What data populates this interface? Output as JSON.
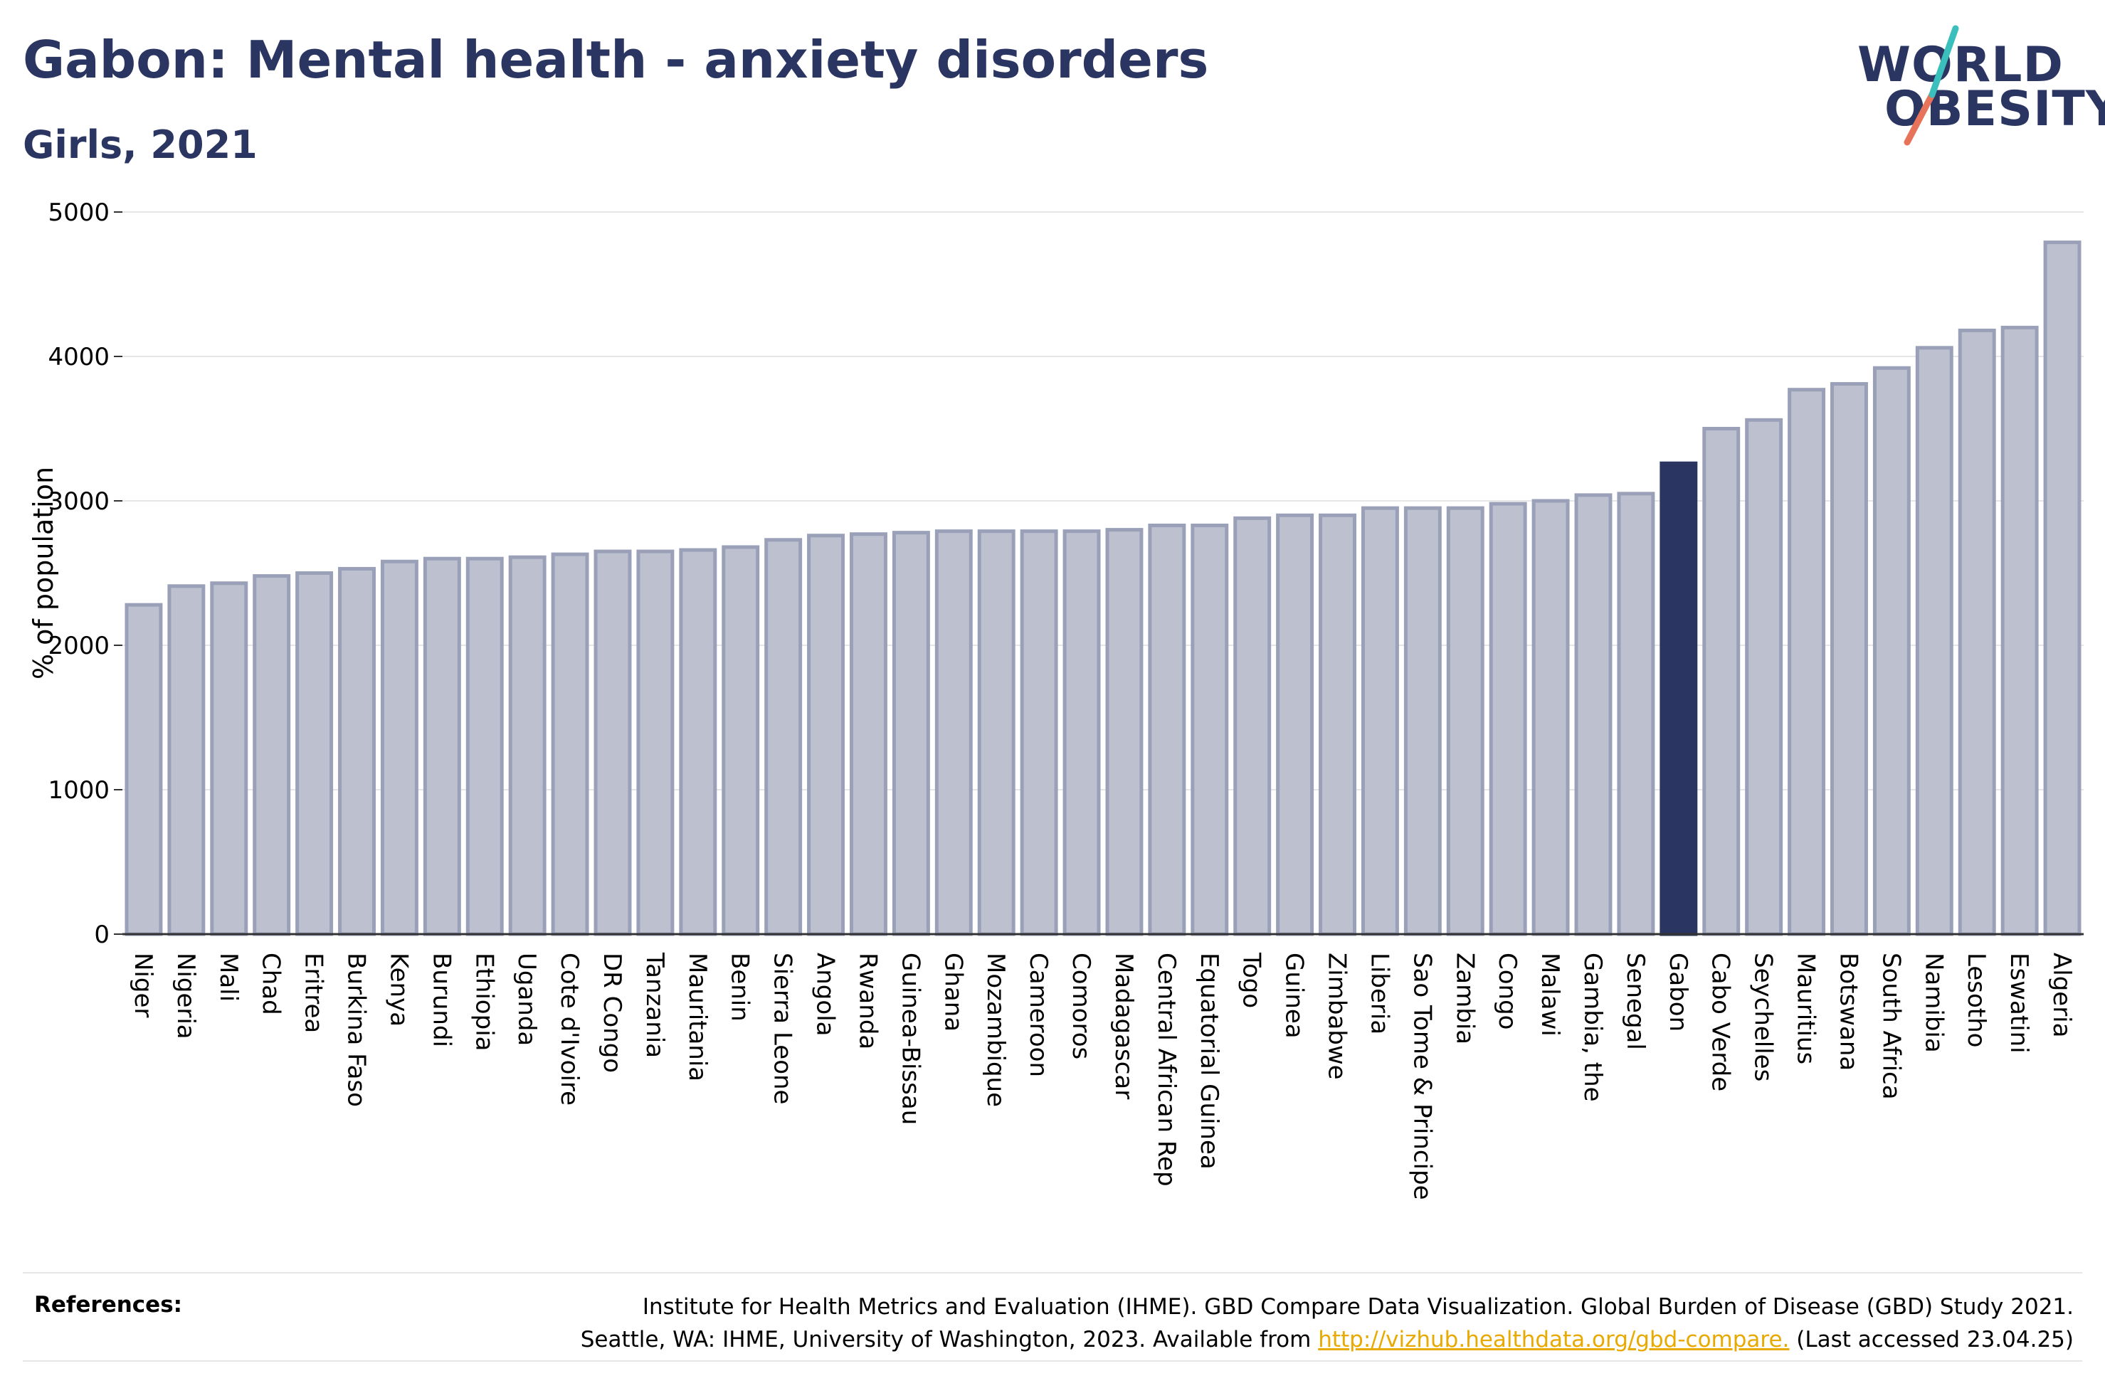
{
  "title": "Gabon: Mental health - anxiety disorders",
  "subtitle": "Girls, 2021",
  "logo": {
    "line1": "WORLD",
    "line2": "OBESITY"
  },
  "colors": {
    "highlight": "#2a3561",
    "bar_fill": "#bcc0cf",
    "bar_stroke": "#9aa0b8",
    "accent_teal": "#3bbfbd",
    "accent_coral": "#e8735b"
  },
  "chart_data": {
    "type": "bar",
    "ylabel": "% of population",
    "ylim": [
      0,
      5000
    ],
    "yticks": [
      0,
      1000,
      2000,
      3000,
      4000,
      5000
    ],
    "highlight": "Gabon",
    "categories": [
      "Niger",
      "Nigeria",
      "Mali",
      "Chad",
      "Eritrea",
      "Burkina Faso",
      "Kenya",
      "Burundi",
      "Ethiopia",
      "Uganda",
      "Cote d'Ivoire",
      "DR Congo",
      "Tanzania",
      "Mauritania",
      "Benin",
      "Sierra Leone",
      "Angola",
      "Rwanda",
      "Guinea-Bissau",
      "Ghana",
      "Mozambique",
      "Cameroon",
      "Comoros",
      "Madagascar",
      "Central African Rep",
      "Equatorial Guinea",
      "Togo",
      "Guinea",
      "Zimbabwe",
      "Liberia",
      "Sao Tome & Principe",
      "Zambia",
      "Congo",
      "Malawi",
      "Gambia, the",
      "Senegal",
      "Gabon",
      "Cabo Verde",
      "Seychelles",
      "Mauritius",
      "Botswana",
      "South Africa",
      "Namibia",
      "Lesotho",
      "Eswatini",
      "Algeria"
    ],
    "values": [
      2280,
      2410,
      2430,
      2480,
      2500,
      2530,
      2580,
      2600,
      2600,
      2610,
      2630,
      2650,
      2650,
      2660,
      2680,
      2730,
      2760,
      2770,
      2780,
      2790,
      2790,
      2790,
      2790,
      2800,
      2830,
      2830,
      2880,
      2900,
      2900,
      2950,
      2950,
      2950,
      2980,
      3000,
      3040,
      3050,
      3260,
      3500,
      3560,
      3770,
      3810,
      3920,
      4060,
      4180,
      4200,
      4790
    ]
  },
  "references": {
    "label": "References:",
    "line1": "Institute for Health Metrics and Evaluation (IHME). GBD Compare Data Visualization. Global Burden of Disease (GBD) Study 2021.",
    "line2_pre": "Seattle, WA: IHME, University of Washington, 2023. Available from ",
    "link": "http://vizhub.healthdata.org/gbd-compare.",
    "line2_post": " (Last accessed 23.04.25)"
  }
}
